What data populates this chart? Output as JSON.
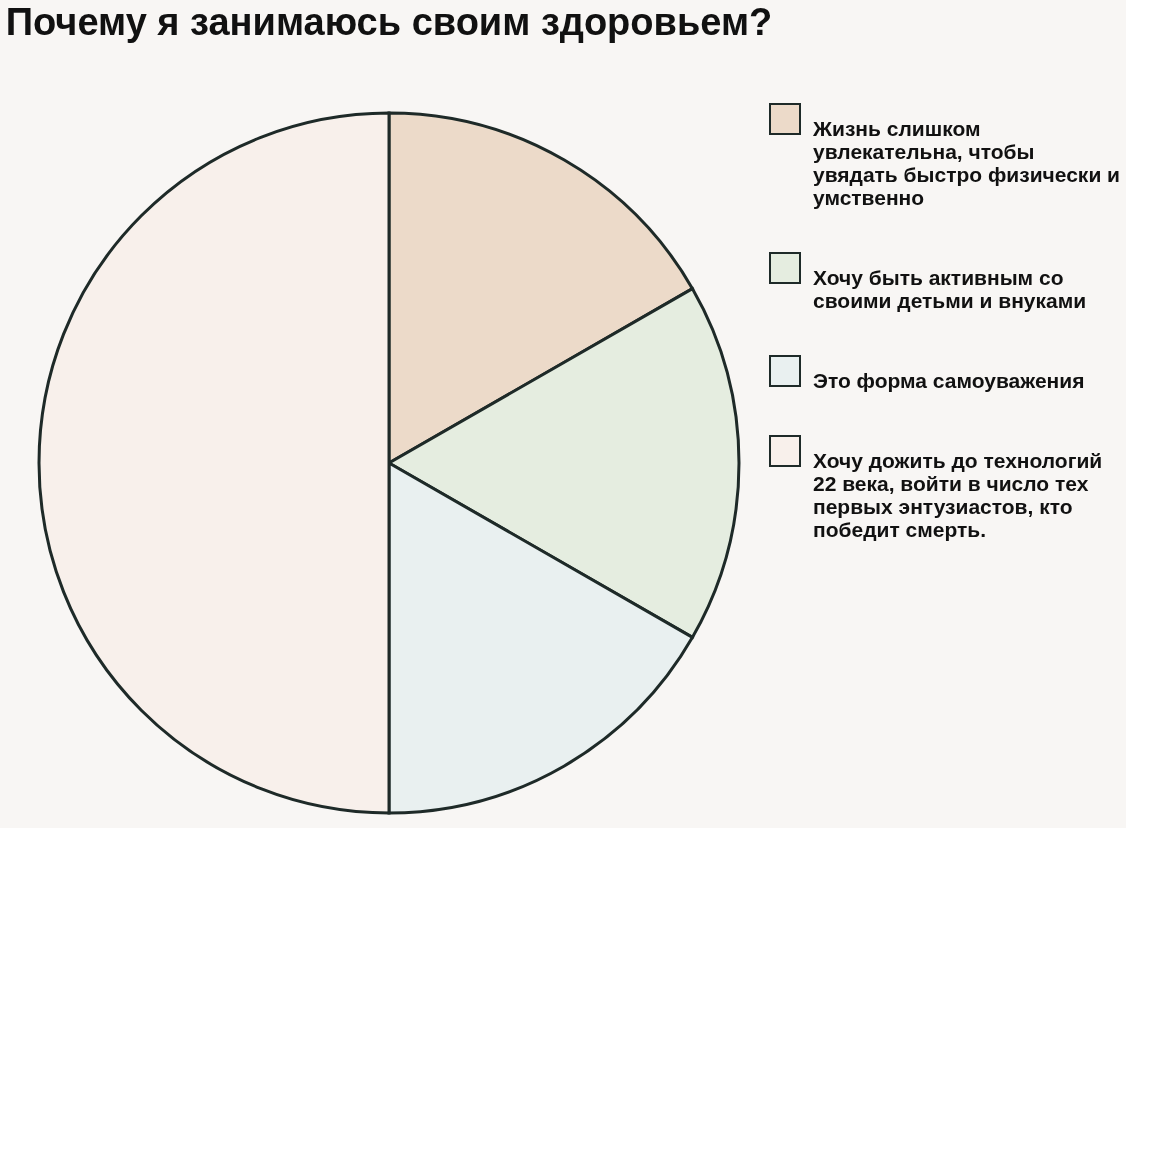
{
  "chart_data": {
    "type": "pie",
    "title": "Почему я занимаюсь своим здоровьем?",
    "categories": [
      "Жизнь слишком увлекательна, чтобы увядать быстро физически и умственно",
      "Хочу быть активным со своими детьми и внуками",
      "Это форма самоуважения",
      "Хочу дожить до технологий 22 века, войти в число тех первых энтузиастов, кто победит смерть."
    ],
    "values": [
      16.7,
      16.6,
      16.7,
      50
    ],
    "colors": [
      "#ecdac9",
      "#e5ede0",
      "#e9f0f0",
      "#f8f0eb"
    ],
    "legend": "right"
  }
}
